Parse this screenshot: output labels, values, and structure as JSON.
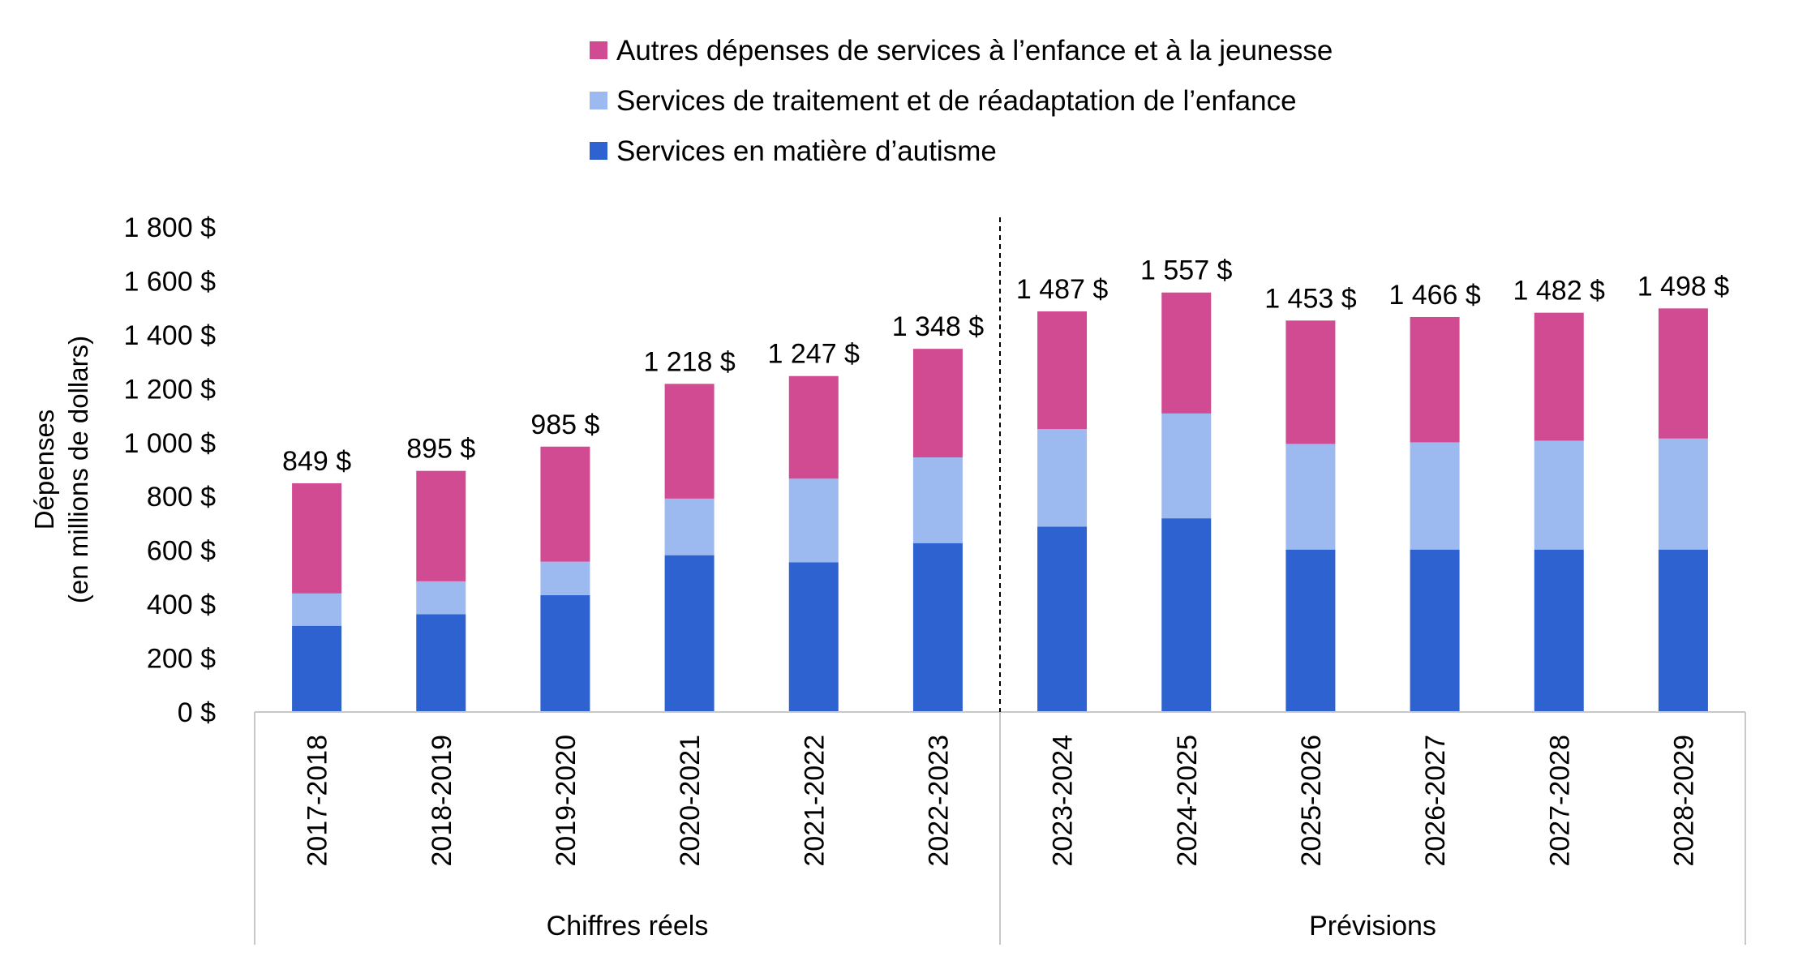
{
  "chart_data": {
    "type": "bar",
    "stacked": true,
    "ylabel": "Dépenses",
    "ylabel_sub": "(en millions de dollars)",
    "ylim": [
      0,
      1800
    ],
    "yticks": [
      0,
      200,
      400,
      600,
      800,
      1000,
      1200,
      1400,
      1600,
      1800
    ],
    "ytick_labels": [
      "0 $",
      "200 $",
      "400 $",
      "600 $",
      "800 $",
      "1 000 $",
      "1 200 $",
      "1 400 $",
      "1 600 $",
      "1 800 $"
    ],
    "grid": false,
    "legend_position": "top-center",
    "categories": [
      "2017-2018",
      "2018-2019",
      "2019-2020",
      "2020-2021",
      "2021-2022",
      "2022-2023",
      "2023-2024",
      "2024-2025",
      "2025-2026",
      "2026-2027",
      "2027-2028",
      "2028-2029"
    ],
    "groups": [
      {
        "label": "Chiffres réels",
        "count": 6
      },
      {
        "label": "Prévisions",
        "count": 6
      }
    ],
    "series": [
      {
        "name": "Services en matière d’autisme",
        "color": "#2E62D1",
        "values": [
          320,
          363,
          434,
          582,
          556,
          627,
          688,
          719,
          603,
          603,
          603,
          603
        ]
      },
      {
        "name": "Services de traitement et de réadaptation de l’enfance",
        "color": "#9DBAF0",
        "values": [
          120,
          122,
          124,
          210,
          310,
          318,
          362,
          389,
          392,
          398,
          404,
          412
        ]
      },
      {
        "name": "Autres dépenses de services à l’enfance et à la jeunesse",
        "color": "#D14B92",
        "values": [
          409,
          410,
          427,
          426,
          381,
          403,
          437,
          449,
          458,
          465,
          475,
          483
        ]
      }
    ],
    "totals": [
      849,
      895,
      985,
      1218,
      1247,
      1348,
      1487,
      1557,
      1453,
      1466,
      1482,
      1498
    ],
    "total_labels": [
      "849 $",
      "895 $",
      "985 $",
      "1 218 $",
      "1 247 $",
      "1 348 $",
      "1 487 $",
      "1 557 $",
      "1 453 $",
      "1 466 $",
      "1 482 $",
      "1 498 $"
    ],
    "legend_order": [
      2,
      1,
      0
    ]
  }
}
